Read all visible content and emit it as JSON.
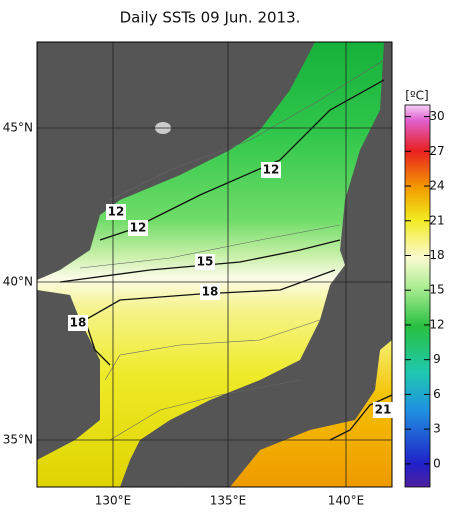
{
  "title": "Daily SSTs 09 Jun. 2013.",
  "longitude_labels": [
    "130°E",
    "135°E",
    "140°E"
  ],
  "latitude_labels": [
    "45°N",
    "40°N",
    "35°N"
  ],
  "colorbar": {
    "label": "[ºC]",
    "min": -2,
    "max": 31,
    "ticks": [
      0,
      3,
      6,
      9,
      12,
      15,
      18,
      21,
      24,
      27,
      30
    ]
  },
  "contour_labels": [
    "12",
    "12",
    "12",
    "15",
    "18",
    "18",
    "21"
  ]
}
